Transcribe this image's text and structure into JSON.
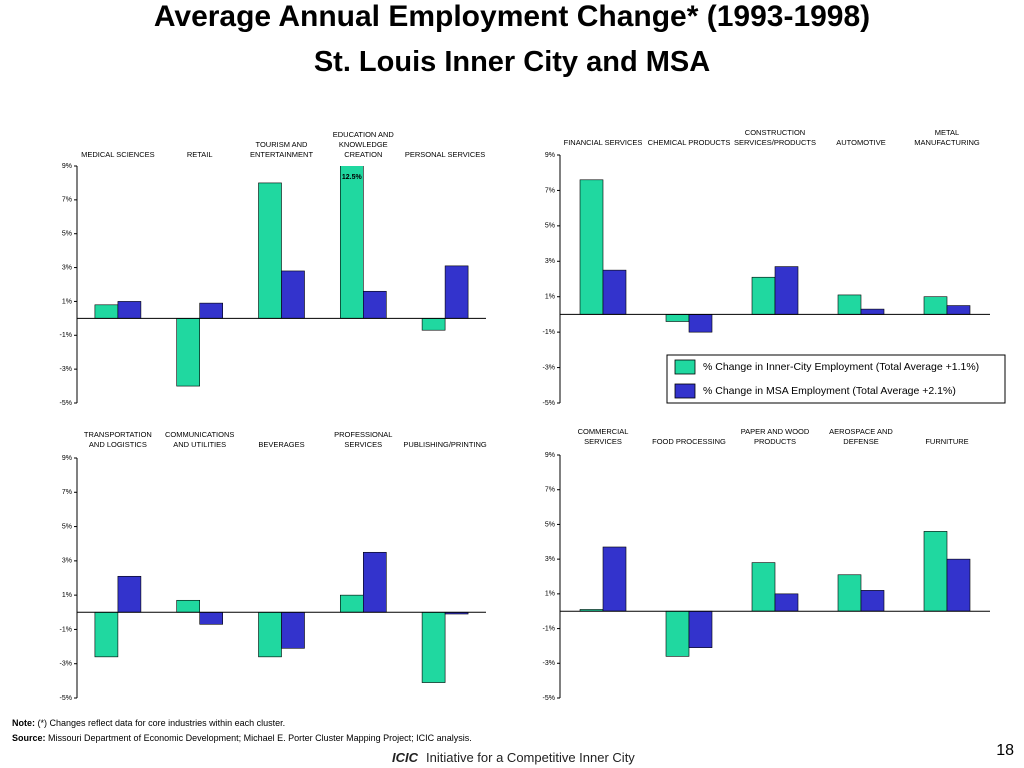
{
  "title": "Average Annual Employment Change* (1993-1998)",
  "subtitle": "St. Louis Inner City and MSA",
  "chart_data": [
    {
      "type": "bar",
      "categories": [
        "MEDICAL SCIENCES",
        "RETAIL",
        "TOURISM AND\nENTERTAINMENT",
        "EDUCATION AND\nKNOWLEDGE\nCREATION",
        "PERSONAL SERVICES"
      ],
      "series": [
        {
          "color": "#20d8a0",
          "values": [
            0.8,
            -4.0,
            8.0,
            12.5,
            -0.7
          ],
          "value_labels": [
            null,
            null,
            null,
            "12.5%",
            null
          ]
        },
        {
          "color": "#3333cc",
          "values": [
            1.0,
            0.9,
            2.8,
            1.6,
            3.1
          ]
        }
      ],
      "ylim": [
        -5,
        9
      ],
      "yticks": [
        {
          "value": -5,
          "label": "-5%"
        },
        {
          "value": -3,
          "label": "-3%"
        },
        {
          "value": -1,
          "label": "-1%"
        },
        {
          "value": 1,
          "label": "1%"
        },
        {
          "value": 3,
          "label": "3%"
        },
        {
          "value": 5,
          "label": "5%"
        },
        {
          "value": 7,
          "label": "7%"
        },
        {
          "value": 9,
          "label": "9%"
        }
      ]
    },
    {
      "type": "bar",
      "categories": [
        "FINANCIAL SERVICES",
        "CHEMICAL PRODUCTS",
        "CONSTRUCTION\nSERVICES/PRODUCTS",
        "AUTOMOTIVE",
        "METAL\nMANUFACTURING"
      ],
      "series": [
        {
          "name": "% Change in Inner-City Employment (Total Average +1.1%)",
          "color": "#20d8a0",
          "values": [
            7.6,
            -0.4,
            2.1,
            1.1,
            1.0
          ]
        },
        {
          "name": "% Change in MSA Employment (Total Average +2.1%)",
          "color": "#3333cc",
          "values": [
            2.5,
            -1.0,
            2.7,
            0.3,
            0.5
          ]
        }
      ],
      "legend": "lower right",
      "ylim": [
        -5,
        9
      ],
      "yticks": [
        {
          "value": -5,
          "label": "-5%"
        },
        {
          "value": -3,
          "label": "-3%"
        },
        {
          "value": -1,
          "label": "-1%"
        },
        {
          "value": 1,
          "label": "1%"
        },
        {
          "value": 3,
          "label": "3%"
        },
        {
          "value": 5,
          "label": "5%"
        },
        {
          "value": 7,
          "label": "7%"
        },
        {
          "value": 9,
          "label": "9%"
        }
      ]
    },
    {
      "type": "bar",
      "categories": [
        "TRANSPORTATION\nAND LOGISTICS",
        "COMMUNICATIONS\nAND UTILITIES",
        "BEVERAGES",
        "PROFESSIONAL\nSERVICES",
        "PUBLISHING/PRINTING"
      ],
      "series": [
        {
          "color": "#20d8a0",
          "values": [
            -2.6,
            0.7,
            -2.6,
            1.0,
            -4.1
          ]
        },
        {
          "color": "#3333cc",
          "values": [
            2.1,
            -0.7,
            -2.1,
            3.5,
            -0.1
          ]
        }
      ],
      "ylim": [
        -5,
        9
      ],
      "yticks": [
        {
          "value": -5,
          "label": "-5%"
        },
        {
          "value": -3,
          "label": "-3%"
        },
        {
          "value": -1,
          "label": "-1%"
        },
        {
          "value": 1,
          "label": "1%"
        },
        {
          "value": 3,
          "label": "3%"
        },
        {
          "value": 5,
          "label": "5%"
        },
        {
          "value": 7,
          "label": "7%"
        },
        {
          "value": 9,
          "label": "9%"
        }
      ]
    },
    {
      "type": "bar",
      "categories": [
        "COMMERCIAL\nSERVICES",
        "FOOD PROCESSING",
        "PAPER AND WOOD\nPRODUCTS",
        "AEROSPACE AND\nDEFENSE",
        "FURNITURE"
      ],
      "series": [
        {
          "color": "#20d8a0",
          "values": [
            0.1,
            -2.6,
            2.8,
            2.1,
            4.6
          ]
        },
        {
          "color": "#3333cc",
          "values": [
            3.7,
            -2.1,
            1.0,
            1.2,
            3.0
          ]
        }
      ],
      "ylim": [
        -5,
        9
      ],
      "yticks": [
        {
          "value": -5,
          "label": "-5%"
        },
        {
          "value": -3,
          "label": "-3%"
        },
        {
          "value": -1,
          "label": "-1%"
        },
        {
          "value": 1,
          "label": "1%"
        },
        {
          "value": 3,
          "label": "3%"
        },
        {
          "value": 5,
          "label": "5%"
        },
        {
          "value": 7,
          "label": "7%"
        },
        {
          "value": 9,
          "label": "9%"
        }
      ]
    }
  ],
  "note": {
    "label": "Note:",
    "text": "(*) Changes reflect data for core industries within each cluster."
  },
  "source": {
    "label": "Source:",
    "text": "Missouri Department of Economic Development; Michael E. Porter Cluster Mapping Project; ICIC analysis."
  },
  "page_number": "18",
  "footer": {
    "logo": "ICIC",
    "text": "Initiative for a Competitive Inner City"
  }
}
